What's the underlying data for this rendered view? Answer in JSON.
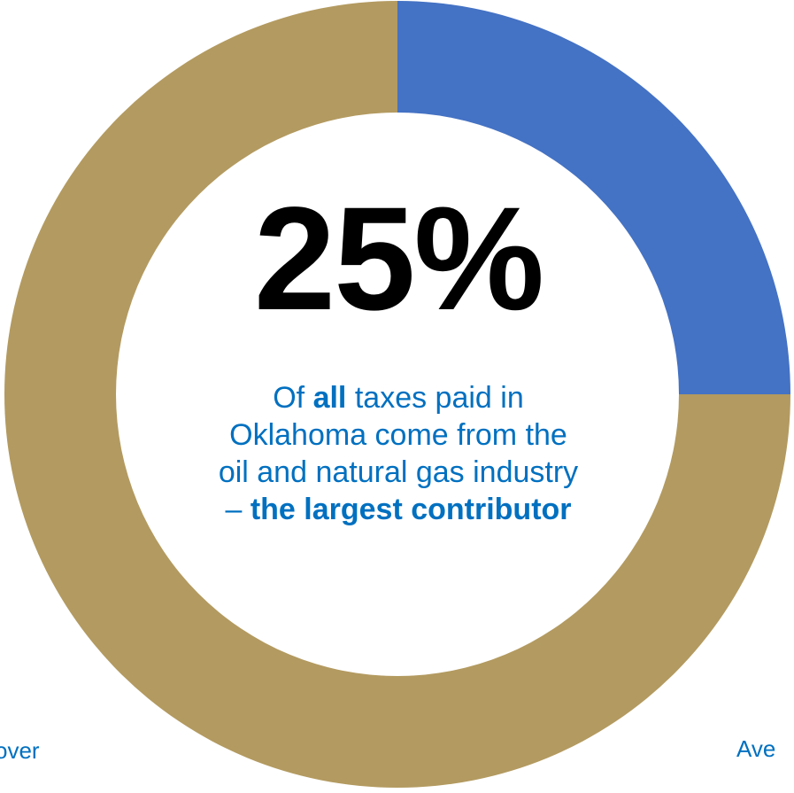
{
  "chart_data": {
    "type": "pie",
    "variant": "donut",
    "slices": [
      {
        "value": 25,
        "color": "#4472c4"
      },
      {
        "value": 75,
        "color": "#b39a60"
      }
    ]
  },
  "center": {
    "percent": "25%",
    "line1_pre": "Of ",
    "line1_bold": "all",
    "line1_post": " taxes paid in",
    "line2": "Oklahoma come from the",
    "line3": "oil and natural gas industry",
    "line4_dash": "– ",
    "line4_bold": "the largest contributor"
  },
  "cut_labels": {
    "left": "over",
    "right": "Ave"
  },
  "colors": {
    "accent_text": "#0070c0",
    "percent_text": "#000000"
  }
}
